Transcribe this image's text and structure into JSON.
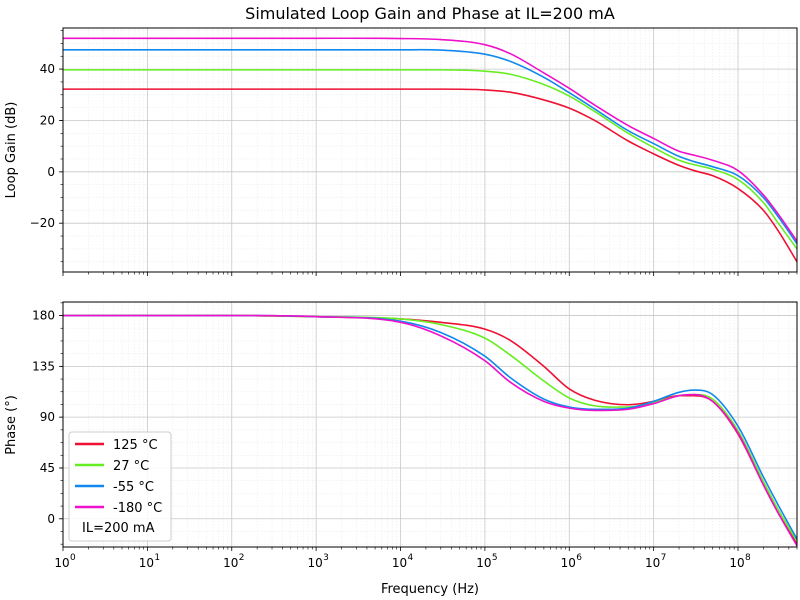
{
  "chart_data": {
    "type": "line",
    "title": "Simulated Loop Gain and Phase at IL=200 mA",
    "xlabel": "Frequency (Hz)",
    "x_scale": "log",
    "xlim": [
      1,
      500000000
    ],
    "x_tick_labels": [
      "10",
      "10",
      "10",
      "10",
      "10",
      "10",
      "10",
      "10",
      "10"
    ],
    "x_tick_exponents": [
      "0",
      "1",
      "2",
      "3",
      "4",
      "5",
      "6",
      "7",
      "8"
    ],
    "x_tick_values": [
      1,
      10,
      100,
      1000,
      10000,
      100000,
      1000000,
      10000000,
      100000000
    ],
    "grid": true,
    "legend_position": "lower-left",
    "legend_note": "IL=200 mA",
    "series_colors": [
      "#ee1133",
      "#66ee22",
      "#1188ee",
      "#ee11cc"
    ],
    "panels": [
      {
        "ylabel": "Loop Gain (dB)",
        "ylim": [
          -39,
          56
        ],
        "y_ticks": [
          -20,
          0,
          20,
          40
        ],
        "y_tick_labels": [
          "−20",
          "0",
          "20",
          "40"
        ],
        "series": [
          {
            "name": "125 °C",
            "x": [
              1,
              10,
              100,
              1000,
              10000,
              30000,
              100000,
              200000,
              500000,
              1000000,
              2000000,
              5000000,
              10000000,
              20000000,
              30000000,
              50000000,
              100000000,
              200000000,
              300000000,
              500000000
            ],
            "values": [
              32.2,
              32.2,
              32.2,
              32.2,
              32.2,
              32.2,
              31.9,
              31.0,
              28.0,
              24.8,
              20.0,
              12.0,
              7.0,
              2.5,
              0.5,
              -1.5,
              -6.5,
              -15.0,
              -23.0,
              -35.0
            ]
          },
          {
            "name": "27 °C",
            "x": [
              1,
              10,
              100,
              1000,
              10000,
              30000,
              100000,
              200000,
              500000,
              1000000,
              2000000,
              5000000,
              10000000,
              20000000,
              30000000,
              50000000,
              100000000,
              200000000,
              300000000,
              500000000
            ],
            "values": [
              39.7,
              39.7,
              39.7,
              39.7,
              39.7,
              39.7,
              39.2,
              38.0,
              34.0,
              29.5,
              23.5,
              15.0,
              9.5,
              4.5,
              2.8,
              1.0,
              -3.0,
              -12.0,
              -20.0,
              -30.0
            ]
          },
          {
            "name": "-55 °C",
            "x": [
              1,
              10,
              100,
              1000,
              10000,
              30000,
              100000,
              200000,
              500000,
              1000000,
              2000000,
              5000000,
              10000000,
              20000000,
              30000000,
              50000000,
              100000000,
              200000000,
              300000000,
              500000000
            ],
            "values": [
              47.5,
              47.5,
              47.5,
              47.5,
              47.5,
              47.4,
              45.8,
              43.0,
              36.8,
              30.8,
              24.5,
              16.0,
              11.0,
              6.0,
              4.0,
              2.0,
              -1.5,
              -10.0,
              -17.5,
              -28.0
            ]
          },
          {
            "name": "-180 °C",
            "x": [
              1,
              10,
              100,
              1000,
              10000,
              30000,
              100000,
              200000,
              500000,
              1000000,
              2000000,
              5000000,
              10000000,
              20000000,
              30000000,
              50000000,
              100000000,
              200000000,
              300000000,
              500000000
            ],
            "values": [
              52.0,
              52.0,
              52.0,
              52.0,
              51.9,
              51.5,
              49.5,
              46.0,
              38.5,
              32.5,
              26.0,
              18.0,
              13.0,
              8.0,
              6.5,
              4.5,
              0.5,
              -9.0,
              -16.5,
              -27.0
            ]
          }
        ]
      },
      {
        "ylabel": "Phase (°)",
        "ylim": [
          -25,
          192
        ],
        "y_ticks": [
          0,
          45,
          90,
          135,
          180
        ],
        "y_tick_labels": [
          "0",
          "45",
          "90",
          "135",
          "180"
        ],
        "series": [
          {
            "name": "125 °C",
            "x": [
              1,
              100,
              1000,
              10000,
              30000,
              100000,
              200000,
              500000,
              1000000,
              2000000,
              5000000,
              10000000,
              20000000,
              30000000,
              50000000,
              100000000,
              200000000,
              300000000,
              500000000
            ],
            "values": [
              180,
              180,
              179,
              177,
              174,
              168,
              158,
              135,
              115,
              105,
              101,
              104,
              109,
              109,
              104,
              75,
              30,
              5,
              -22
            ]
          },
          {
            "name": "27 °C",
            "x": [
              1,
              100,
              1000,
              10000,
              30000,
              100000,
              200000,
              500000,
              1000000,
              2000000,
              5000000,
              10000000,
              20000000,
              30000000,
              50000000,
              100000000,
              200000000,
              300000000,
              500000000
            ],
            "values": [
              180,
              180,
              179,
              177,
              172,
              160,
              145,
              122,
              107,
              100,
              99,
              103,
              109,
              110,
              106,
              78,
              33,
              8,
              -20
            ]
          },
          {
            "name": "-55 °C",
            "x": [
              1,
              100,
              1000,
              10000,
              30000,
              100000,
              200000,
              500000,
              1000000,
              2000000,
              5000000,
              10000000,
              20000000,
              30000000,
              50000000,
              100000000,
              200000000,
              300000000,
              500000000
            ],
            "values": [
              180,
              180,
              179,
              175,
              165,
              144,
              125,
              106,
              99,
              97,
              98,
              104,
              112,
              114,
              110,
              82,
              37,
              12,
              -18
            ]
          },
          {
            "name": "-180 °C",
            "x": [
              1,
              100,
              1000,
              10000,
              30000,
              100000,
              200000,
              500000,
              1000000,
              2000000,
              5000000,
              10000000,
              20000000,
              30000000,
              50000000,
              100000000,
              200000000,
              300000000,
              500000000
            ],
            "values": [
              180,
              180,
              179,
              174,
              162,
              140,
              121,
              104,
              98,
              96,
              97,
              102,
              109,
              110,
              104,
              76,
              30,
              5,
              -24
            ]
          }
        ]
      }
    ]
  }
}
